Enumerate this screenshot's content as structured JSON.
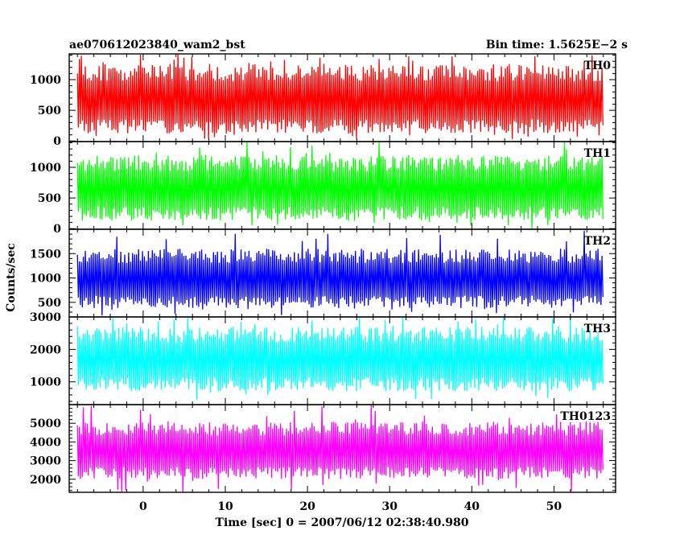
{
  "header": {
    "left": "ae070612023840_wam2_bst",
    "right": "Bin time: 1.5625E−2 s"
  },
  "xlabel": "Time [sec] 0 = 2007/06/12 02:38:40.980",
  "ylabel": "Counts/sec",
  "chart_data": {
    "type": "line",
    "title": "ae070612023840_wam2_bst",
    "subtitle": "Bin time: 1.5625E−2 s",
    "xlabel": "Time [sec] 0 = 2007/06/12 02:38:40.980",
    "ylabel": "Counts/sec",
    "bin_time_s": 0.015625,
    "xlim": [
      -9,
      57.5
    ],
    "x_range": [
      -8,
      56
    ],
    "x_ticks": [
      0,
      10,
      20,
      30,
      40,
      50
    ],
    "grid": false,
    "legend": "none",
    "panels": [
      {
        "name": "TH0",
        "color": "#ff0000",
        "ylim": [
          -10,
          1420
        ],
        "yticks": [
          0,
          500,
          1000
        ],
        "mean": 630,
        "band_low": 120,
        "band_high": 1260,
        "y_peak": 1420,
        "y_floor": 10
      },
      {
        "name": "TH1",
        "color": "#00ff00",
        "ylim": [
          -10,
          1420
        ],
        "yticks": [
          0,
          500,
          1000
        ],
        "mean": 630,
        "band_low": 130,
        "band_high": 1200,
        "y_peak": 1420,
        "y_floor": 0
      },
      {
        "name": "TH2",
        "color": "#0000ff",
        "ylim": [
          200,
          2000
        ],
        "yticks": [
          500,
          1000,
          1500
        ],
        "mean": 950,
        "band_low": 380,
        "band_high": 1600,
        "y_peak": 2000,
        "y_floor": 220
      },
      {
        "name": "TH3",
        "color": "#00ffff",
        "ylim": [
          300,
          3000
        ],
        "yticks": [
          1000,
          2000,
          3000
        ],
        "mean": 1650,
        "band_low": 700,
        "band_high": 2700,
        "y_peak": 3000,
        "y_floor": 400
      },
      {
        "name": "TH0123",
        "color": "#ff00ff",
        "ylim": [
          1300,
          6000
        ],
        "yticks": [
          2000,
          3000,
          4000,
          5000
        ],
        "mean": 3450,
        "band_low": 2000,
        "band_high": 5100,
        "y_peak": 6000,
        "y_floor": 1300
      }
    ]
  }
}
